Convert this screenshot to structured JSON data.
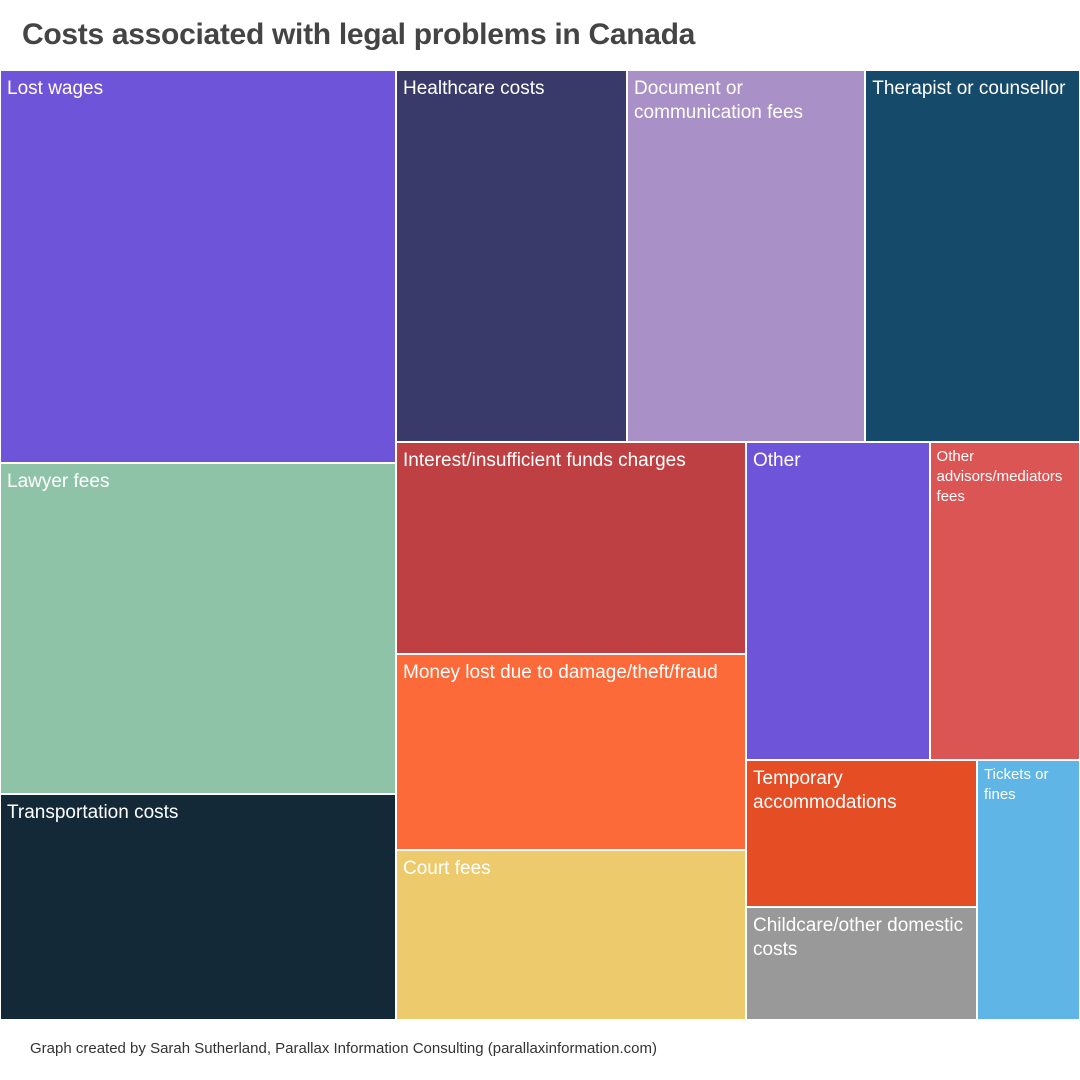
{
  "chart_data": {
    "type": "treemap",
    "title": "Costs associated with legal problems in Canada",
    "items": [
      {
        "label": "Lost wages",
        "value": 395,
        "color": "#6e54d8",
        "column": 0
      },
      {
        "label": "Lawyer fees",
        "value": 334,
        "color": "#8fc3a8",
        "column": 0
      },
      {
        "label": "Transportation costs",
        "value": 227,
        "color": "#142938",
        "column": 0
      },
      {
        "label": "Healthcare costs",
        "value": 227,
        "color": "#3a3a6a",
        "column": 1
      },
      {
        "label": "Document or communication fees",
        "value": 234,
        "color": "#a990c6",
        "column": 1
      },
      {
        "label": "Therapist or counsellor",
        "value": 211,
        "color": "#164a6b",
        "column": 1
      },
      {
        "label": "Interest/insufficient funds charges",
        "value": 212,
        "color": "#be4042",
        "column": 2
      },
      {
        "label": "Money lost due to damage/theft/fraud",
        "value": 195,
        "color": "#fd6a39",
        "column": 2
      },
      {
        "label": "Court fees",
        "value": 170,
        "color": "#edcb6c",
        "column": 2
      },
      {
        "label": "Other",
        "value": 183,
        "color": "#6e54d8",
        "column": 3
      },
      {
        "label": "Other advisors/mediators fees",
        "value": 150,
        "color": "#db5555",
        "column": 3
      },
      {
        "label": "Temporary accommodations",
        "value": 102,
        "color": "#e54d24",
        "column": 4
      },
      {
        "label": "Childcare/other domestic costs",
        "value": 78,
        "color": "#999999",
        "column": 4
      },
      {
        "label": "Tickets or fines",
        "value": 63,
        "color": "#5fb5e6",
        "column": 4
      }
    ]
  },
  "footer": "Graph created by Sarah Sutherland, Parallax Information Consulting (parallaxinformation.com)"
}
